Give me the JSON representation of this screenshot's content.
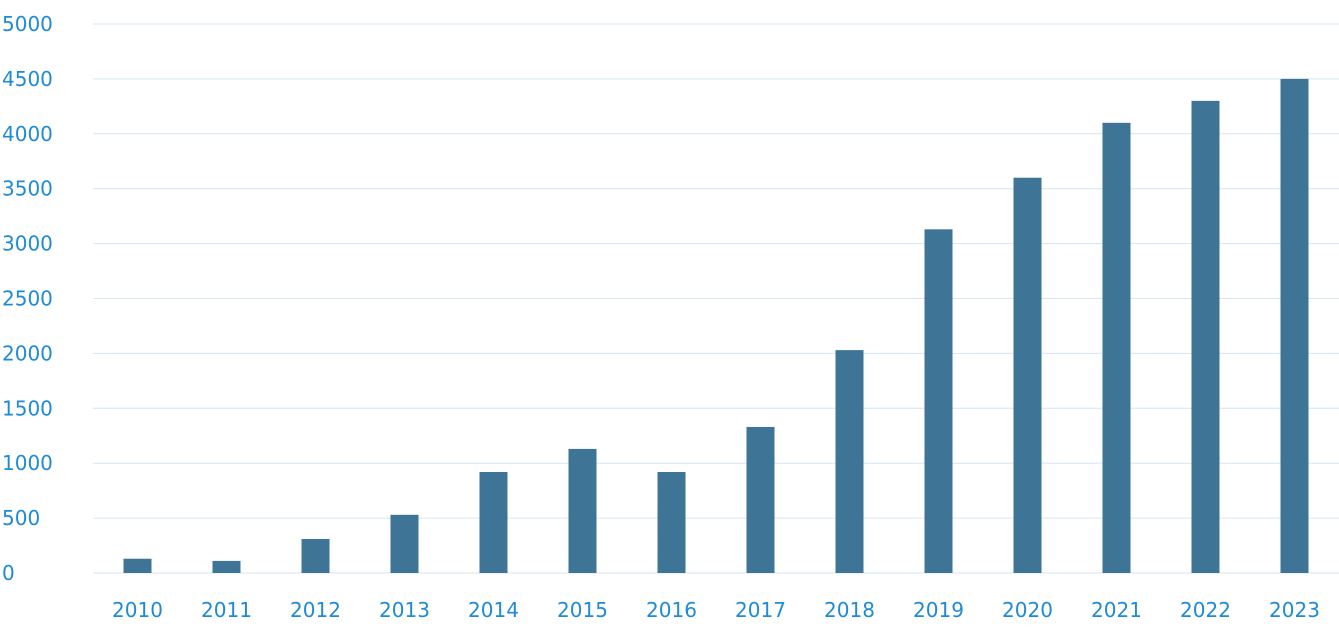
{
  "chart_data": {
    "type": "bar",
    "categories": [
      "2010",
      "2011",
      "2012",
      "2013",
      "2014",
      "2015",
      "2016",
      "2017",
      "2018",
      "2019",
      "2020",
      "2021",
      "2022",
      "2023"
    ],
    "values": [
      130,
      110,
      310,
      530,
      920,
      1130,
      920,
      1330,
      2030,
      3130,
      3600,
      4100,
      4300,
      4500
    ],
    "title": "",
    "xlabel": "",
    "ylabel": "",
    "ylim": [
      0,
      5000
    ],
    "yticks": [
      "0",
      "500",
      "1000",
      "1500",
      "2000",
      "2500",
      "3000",
      "3500",
      "4000",
      "4500",
      "5000"
    ],
    "grid": true,
    "legend": "none",
    "colors": {
      "bar": "#3e7596",
      "grid": "#d6e6f2",
      "tick_text": "#1f8ad6",
      "axis": "#d6e6f2"
    }
  }
}
